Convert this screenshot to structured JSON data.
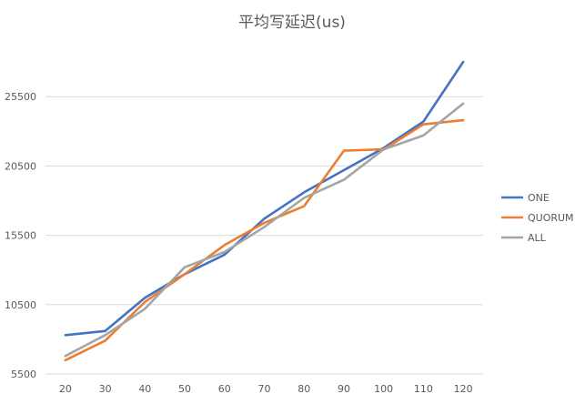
{
  "chart_data": {
    "type": "line",
    "title": "平均写延迟(us)",
    "xlabel": "",
    "ylabel": "",
    "categories": [
      "20",
      "30",
      "40",
      "50",
      "60",
      "70",
      "80",
      "90",
      "100",
      "110",
      "120"
    ],
    "yticks": [
      5500,
      10500,
      15500,
      20500,
      25500
    ],
    "yticklabels": [
      "5500",
      "10500",
      "15500",
      "20500",
      "25500"
    ],
    "ylim": [
      5500,
      30500
    ],
    "grid": true,
    "legend_position": "right",
    "series": [
      {
        "name": "ONE",
        "color": "#4472c4",
        "values": [
          8300,
          8600,
          11000,
          12700,
          14100,
          16700,
          18600,
          20200,
          21800,
          23700,
          28000
        ]
      },
      {
        "name": "QUORUM",
        "color": "#ed7d31",
        "values": [
          6500,
          7900,
          10700,
          12700,
          14800,
          16400,
          17600,
          21600,
          21700,
          23500,
          23800
        ]
      },
      {
        "name": "ALL",
        "color": "#a5a5a5",
        "values": [
          6800,
          8300,
          10200,
          13200,
          14300,
          16100,
          18200,
          19500,
          21700,
          22700,
          25000
        ]
      }
    ]
  }
}
